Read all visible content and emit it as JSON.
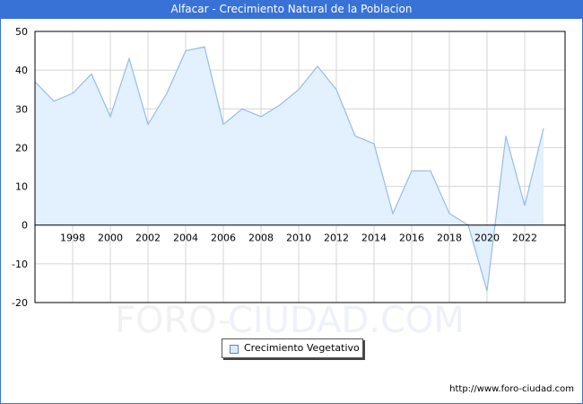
{
  "header": {
    "title": "Alfacar - Crecimiento Natural de la Poblacion"
  },
  "watermark": {
    "text_left": "FORO-",
    "text_right": "CIUDAD.COM"
  },
  "legend": {
    "label": "Crecimiento Vegetativo"
  },
  "footer": {
    "credit": "http://www.foro-ciudad.com"
  },
  "colors": {
    "title_bar": "#3872d6",
    "line": "#97bce8",
    "fill": "#e3f0fd",
    "grid": "#d4d4d4"
  },
  "chart_data": {
    "type": "area",
    "title": "Alfacar - Crecimiento Natural de la Poblacion",
    "xlabel": "",
    "ylabel": "",
    "x": [
      1996,
      1997,
      1998,
      1999,
      2000,
      2001,
      2002,
      2003,
      2004,
      2005,
      2006,
      2007,
      2008,
      2009,
      2010,
      2011,
      2012,
      2013,
      2014,
      2015,
      2016,
      2017,
      2018,
      2019,
      2020,
      2021,
      2022,
      2023
    ],
    "series": [
      {
        "name": "Crecimiento Vegetativo",
        "values": [
          37,
          32,
          34,
          39,
          28,
          43,
          26,
          34,
          45,
          46,
          26,
          30,
          28,
          31,
          35,
          41,
          35,
          23,
          21,
          3,
          14,
          14,
          3,
          0,
          -17,
          23,
          5,
          25
        ]
      }
    ],
    "x_ticks": [
      "1998",
      "2000",
      "2002",
      "2004",
      "2006",
      "2008",
      "2010",
      "2012",
      "2014",
      "2016",
      "2018",
      "2020",
      "2022"
    ],
    "y_ticks": [
      "50",
      "40",
      "30",
      "20",
      "10",
      "0",
      "-10",
      "-20"
    ],
    "ylim": [
      -20,
      50
    ],
    "xlim": [
      1996,
      2024
    ],
    "grid": true,
    "legend_position": "bottom"
  }
}
